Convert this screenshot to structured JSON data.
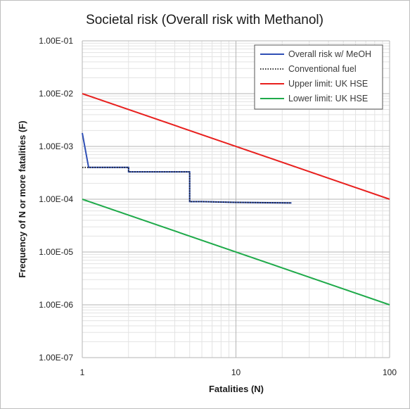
{
  "chart_data": {
    "type": "line",
    "title": "Societal risk (Overall risk with Methanol)",
    "xlabel": "Fatalities (N)",
    "ylabel": "Frequency of N or more fatalities (F)",
    "x_scale": "log",
    "y_scale": "log",
    "xlim": [
      1,
      100
    ],
    "ylim": [
      1e-07,
      0.1
    ],
    "x_ticks": [
      1,
      10,
      100
    ],
    "x_tick_labels": [
      "1",
      "10",
      "100"
    ],
    "y_ticks": [
      1e-07,
      1e-06,
      1e-05,
      0.0001,
      0.001,
      0.01,
      0.1
    ],
    "y_tick_labels": [
      "1.00E-07",
      "1.00E-06",
      "1.00E-05",
      "1.00E-04",
      "1.00E-03",
      "1.00E-02",
      "1.00E-01"
    ],
    "grid": true,
    "legend_position": "top-right",
    "series": [
      {
        "name": "Overall risk w/ MeOH",
        "color": "#2f4fb5",
        "style": "solid",
        "x": [
          1,
          1.1,
          1.1,
          2,
          2,
          5,
          5,
          6,
          10,
          23
        ],
        "y": [
          0.0018,
          0.0004,
          0.0004,
          0.0004,
          0.00033,
          0.00033,
          9e-05,
          9e-05,
          8.7e-05,
          8.5e-05
        ]
      },
      {
        "name": "Conventional fuel",
        "color": "#1a1a1a",
        "style": "dotted",
        "x": [
          1,
          1.1,
          1.1,
          2,
          2,
          5,
          5,
          6,
          10,
          23
        ],
        "y": [
          0.0004,
          0.0004,
          0.0004,
          0.0004,
          0.00033,
          0.00033,
          9e-05,
          9e-05,
          8.7e-05,
          8.5e-05
        ]
      },
      {
        "name": "Upper limit: UK HSE",
        "color": "#e8201e",
        "style": "solid",
        "x": [
          1,
          100
        ],
        "y": [
          0.01,
          0.0001
        ]
      },
      {
        "name": "Lower limit: UK HSE",
        "color": "#1faa4a",
        "style": "solid",
        "x": [
          1,
          100
        ],
        "y": [
          0.0001,
          1e-06
        ]
      }
    ]
  }
}
